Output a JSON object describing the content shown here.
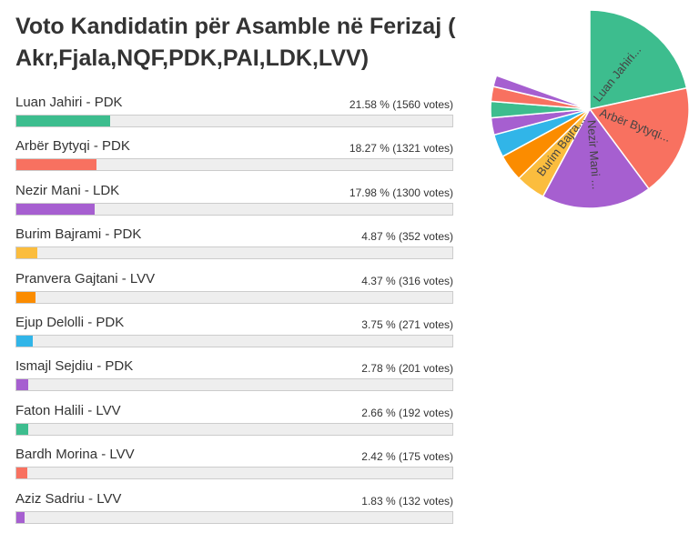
{
  "title": "Voto Kandidatin për Asamble në Ferizaj ( Akr,Fjala,NQF,PDK,PAI,LDK,LVV)",
  "candidates": [
    {
      "name": "Luan Jahiri - PDK",
      "result": "21.58 % (1560 votes)",
      "percent": 21.58,
      "color": "#3dbd8e",
      "pie_label": "Luan Jahiri..."
    },
    {
      "name": "Arbër Bytyqi - PDK",
      "result": "18.27 % (1321 votes)",
      "percent": 18.27,
      "color": "#f87160",
      "pie_label": "Arbër Bytyqi..."
    },
    {
      "name": "Nezir Mani - LDK",
      "result": "17.98 % (1300 votes)",
      "percent": 17.98,
      "color": "#a65fd0",
      "pie_label": "Nezir Mani ..."
    },
    {
      "name": "Burim Bajrami - PDK",
      "result": "4.87 % (352 votes)",
      "percent": 4.87,
      "color": "#fbbd3e",
      "pie_label": "Burim Bajra..."
    },
    {
      "name": "Pranvera Gajtani - LVV",
      "result": "4.37 % (316 votes)",
      "percent": 4.37,
      "color": "#fb8c00"
    },
    {
      "name": "Ejup Delolli - PDK",
      "result": "3.75 % (271 votes)",
      "percent": 3.75,
      "color": "#31b5e8"
    },
    {
      "name": "Ismajl Sejdiu - PDK",
      "result": "2.78 % (201 votes)",
      "percent": 2.78,
      "color": "#a65fd0"
    },
    {
      "name": "Faton Halili - LVV",
      "result": "2.66 % (192 votes)",
      "percent": 2.66,
      "color": "#3dbd8e"
    },
    {
      "name": "Bardh Morina - LVV",
      "result": "2.42 % (175 votes)",
      "percent": 2.42,
      "color": "#f87160"
    },
    {
      "name": "Aziz Sadriu - LVV",
      "result": "1.83 % (132 votes)",
      "percent": 1.83,
      "color": "#a65fd0"
    }
  ]
}
